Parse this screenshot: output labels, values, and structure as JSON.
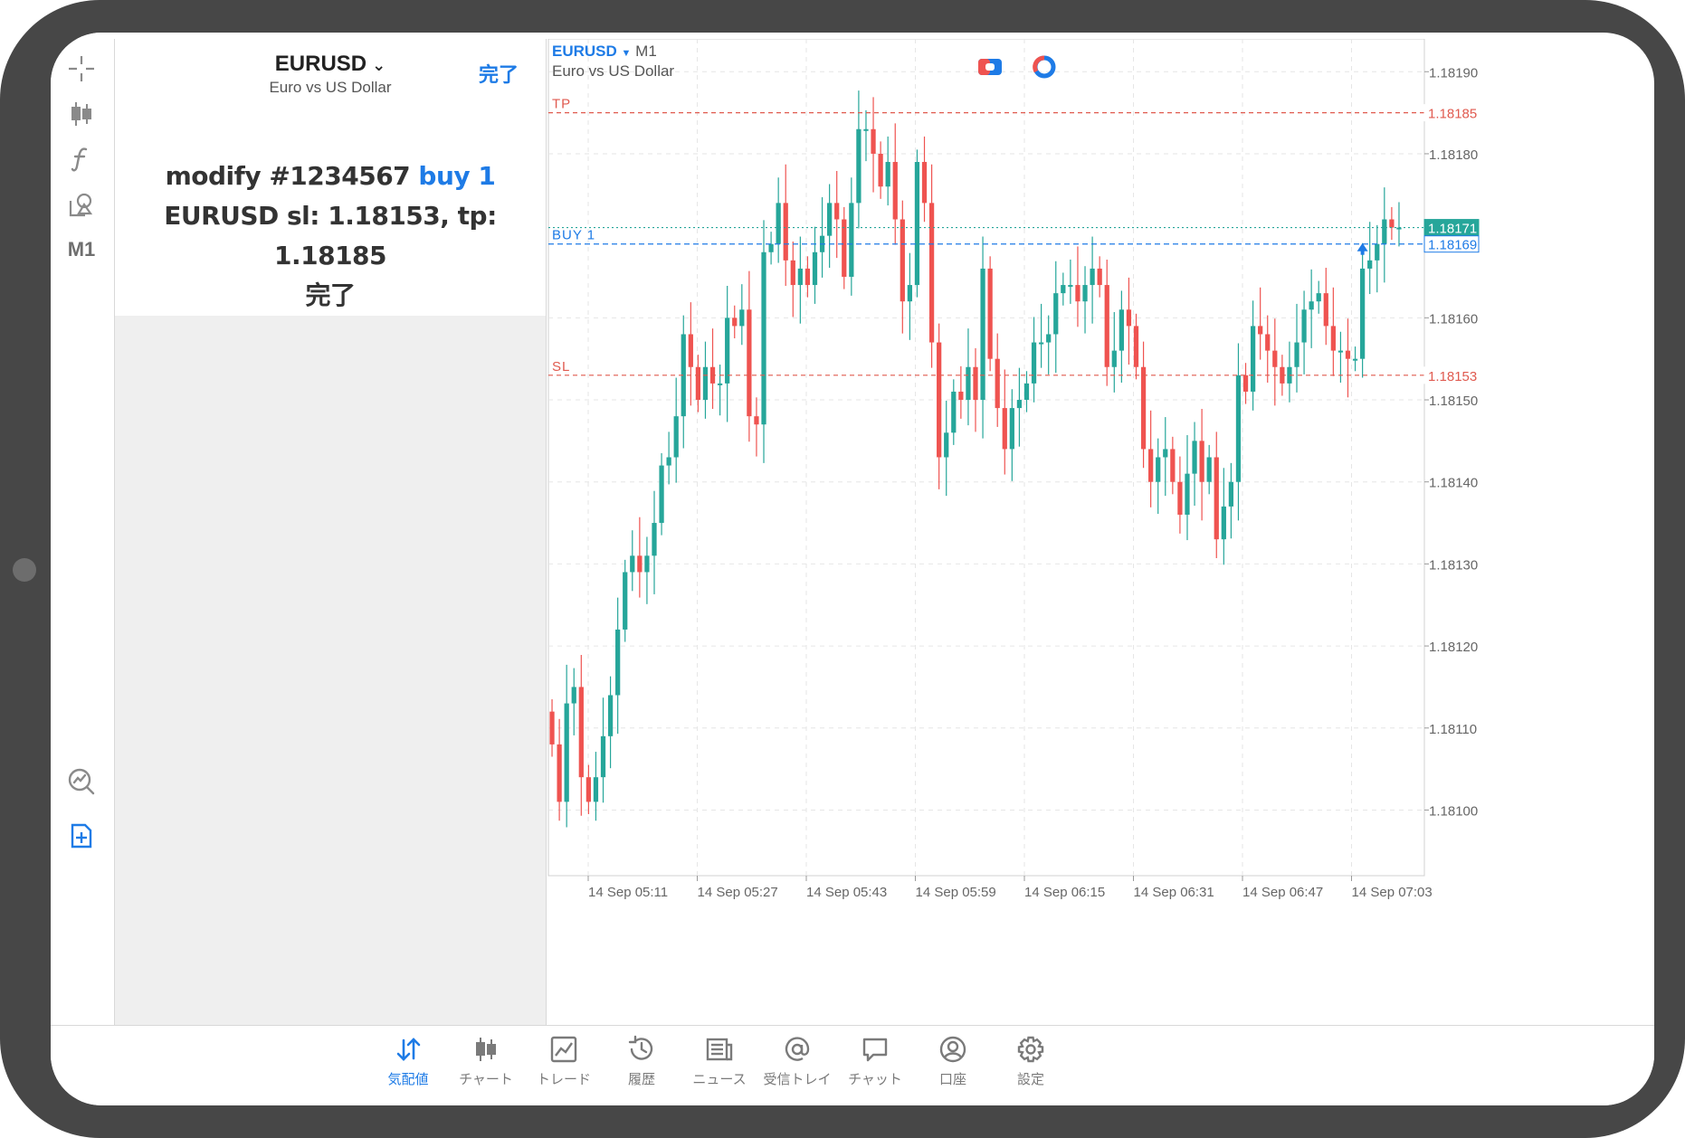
{
  "panel": {
    "symbol": "EURUSD",
    "description": "Euro vs US Dollar",
    "done_label": "完了",
    "msg_prefix": "modify #1234567 ",
    "msg_action": "buy 1",
    "msg_rest": " EURUSD sl: 1.18153, tp: 1.18185",
    "msg_status": "完了"
  },
  "toolbar": {
    "timeframe_label": "M1"
  },
  "chart": {
    "symbol": "EURUSD",
    "timeframe": "M1",
    "description": "Euro vs US Dollar",
    "colors": {
      "bull": "#26a69a",
      "bear": "#ef5350",
      "accent": "#1e7be6",
      "level": "#e05a4f"
    },
    "line_labels": {
      "tp": "TP",
      "buy": "BUY 1",
      "sl": "SL"
    },
    "level_labels": {
      "tp": "1.18185",
      "sl": "1.18153",
      "bid": "1.18171",
      "buy": "1.18169"
    }
  },
  "chart_data": {
    "type": "candlestick",
    "y_ticks": [
      "1.18190",
      "1.18180",
      "1.18160",
      "1.18150",
      "1.18140",
      "1.18130",
      "1.18120",
      "1.18110",
      "1.18100"
    ],
    "x_ticks": [
      "14 Sep 05:11",
      "14 Sep 05:27",
      "14 Sep 05:43",
      "14 Sep 05:59",
      "14 Sep 06:15",
      "14 Sep 06:31",
      "14 Sep 06:47",
      "14 Sep 07:03"
    ],
    "ylim": [
      1.18092,
      1.18194
    ],
    "levels": {
      "tp": 1.18185,
      "sl": 1.18153,
      "bid": 1.18171,
      "buy": 1.18169
    },
    "grid": true,
    "closes": [
      1.18108,
      1.18101,
      1.18113,
      1.18115,
      1.18104,
      1.18101,
      1.18104,
      1.18109,
      1.18114,
      1.18122,
      1.18129,
      1.18131,
      1.18129,
      1.18131,
      1.18135,
      1.18142,
      1.18143,
      1.18148,
      1.18158,
      1.18154,
      1.1815,
      1.18154,
      1.18152,
      1.18152,
      1.1816,
      1.18159,
      1.18161,
      1.18148,
      1.18147,
      1.18168,
      1.18169,
      1.18174,
      1.18167,
      1.18164,
      1.18166,
      1.18164,
      1.18168,
      1.1817,
      1.18174,
      1.18172,
      1.18165,
      1.18174,
      1.18183,
      1.18183,
      1.1818,
      1.18176,
      1.18179,
      1.18172,
      1.18162,
      1.18164,
      1.18179,
      1.18174,
      1.18157,
      1.18143,
      1.18146,
      1.18151,
      1.1815,
      1.18154,
      1.1815,
      1.18166,
      1.18155,
      1.18149,
      1.18144,
      1.18149,
      1.1815,
      1.18152,
      1.18157,
      1.18157,
      1.18158,
      1.18163,
      1.18164,
      1.18164,
      1.18162,
      1.18164,
      1.18166,
      1.18164,
      1.18154,
      1.18156,
      1.18161,
      1.18159,
      1.18154,
      1.18144,
      1.1814,
      1.18143,
      1.18144,
      1.1814,
      1.18136,
      1.18141,
      1.18145,
      1.1814,
      1.18143,
      1.18133,
      1.18137,
      1.1814,
      1.18153,
      1.18151,
      1.18159,
      1.18158,
      1.18156,
      1.18154,
      1.18152,
      1.18154,
      1.18157,
      1.18161,
      1.18162,
      1.18163,
      1.18159,
      1.18156,
      1.18156,
      1.18155,
      1.18155,
      1.18166,
      1.18167,
      1.18169,
      1.18172,
      1.18171,
      1.18171
    ]
  },
  "bottom_nav": [
    {
      "label": "気配値",
      "icon": "quotes-icon",
      "active": true
    },
    {
      "label": "チャート",
      "icon": "chart-icon",
      "active": false
    },
    {
      "label": "トレード",
      "icon": "trade-icon",
      "active": false
    },
    {
      "label": "履歴",
      "icon": "history-icon",
      "active": false
    },
    {
      "label": "ニュース",
      "icon": "news-icon",
      "active": false
    },
    {
      "label": "受信トレイ",
      "icon": "mailbox-icon",
      "active": false
    },
    {
      "label": "チャット",
      "icon": "chat-icon",
      "active": false
    },
    {
      "label": "口座",
      "icon": "account-icon",
      "active": false
    },
    {
      "label": "設定",
      "icon": "settings-icon",
      "active": false
    }
  ]
}
